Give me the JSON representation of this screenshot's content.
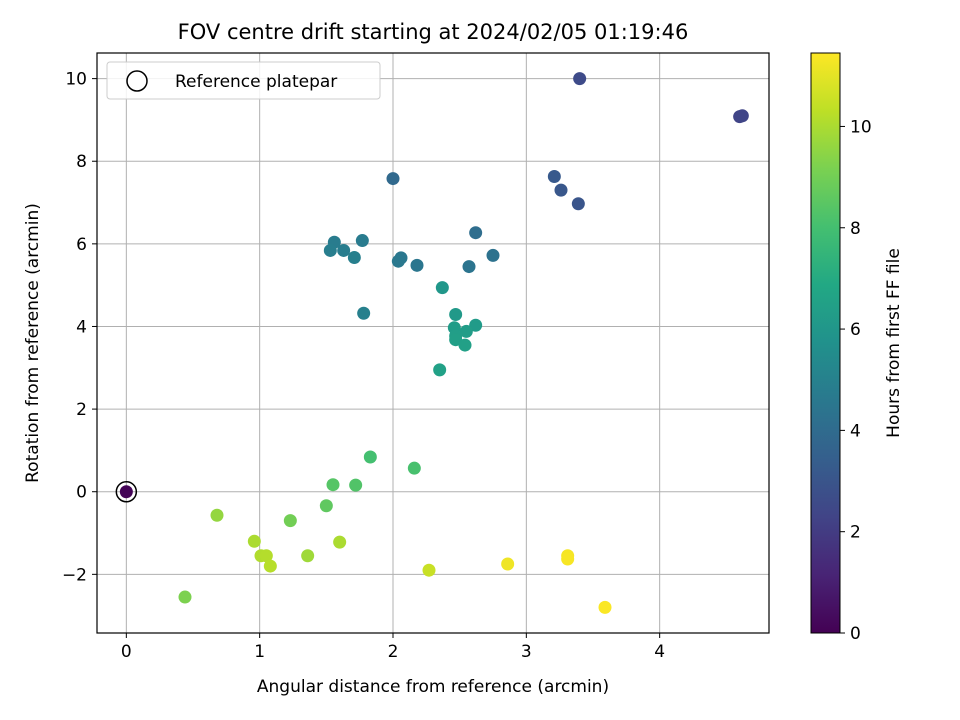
{
  "chart_data": {
    "type": "scatter",
    "title": "FOV centre drift starting at 2024/02/05 01:19:46",
    "xlabel": "Angular distance from reference (arcmin)",
    "ylabel": "Rotation from reference (arcmin)",
    "xlim": [
      -0.22,
      4.82
    ],
    "ylim": [
      -3.42,
      10.62
    ],
    "xticks": [
      0,
      1,
      2,
      3,
      4
    ],
    "xtick_labels": [
      "0",
      "1",
      "2",
      "3",
      "4"
    ],
    "yticks": [
      -2,
      0,
      2,
      4,
      6,
      8,
      10
    ],
    "ytick_labels": [
      "−2",
      "0",
      "2",
      "4",
      "6",
      "8",
      "10"
    ],
    "grid": true,
    "legend": {
      "location": "upper-left",
      "label": "Reference platepar"
    },
    "reference_point": {
      "x": 0,
      "y": 0
    },
    "colorbar": {
      "label": "Hours from first FF file",
      "range": [
        0,
        11.45
      ],
      "ticks": [
        0,
        2,
        4,
        6,
        8,
        10
      ],
      "tick_labels": [
        "0",
        "2",
        "4",
        "6",
        "8",
        "10"
      ],
      "colormap": "viridis"
    },
    "points": [
      {
        "x": 0.0,
        "y": 0.0,
        "hours": 0.1
      },
      {
        "x": 4.6,
        "y": 9.08,
        "hours": 2.3
      },
      {
        "x": 4.62,
        "y": 9.1,
        "hours": 2.35
      },
      {
        "x": 3.4,
        "y": 10.0,
        "hours": 2.6
      },
      {
        "x": 3.39,
        "y": 6.97,
        "hours": 3.0
      },
      {
        "x": 3.26,
        "y": 7.3,
        "hours": 3.1
      },
      {
        "x": 3.21,
        "y": 7.63,
        "hours": 3.2
      },
      {
        "x": 2.0,
        "y": 7.58,
        "hours": 3.9
      },
      {
        "x": 2.62,
        "y": 6.27,
        "hours": 4.1
      },
      {
        "x": 2.75,
        "y": 5.72,
        "hours": 4.3
      },
      {
        "x": 2.57,
        "y": 5.45,
        "hours": 4.4
      },
      {
        "x": 2.18,
        "y": 5.48,
        "hours": 4.5
      },
      {
        "x": 2.06,
        "y": 5.66,
        "hours": 4.55
      },
      {
        "x": 2.04,
        "y": 5.58,
        "hours": 4.6
      },
      {
        "x": 1.77,
        "y": 6.08,
        "hours": 4.7
      },
      {
        "x": 1.56,
        "y": 6.04,
        "hours": 4.75
      },
      {
        "x": 1.63,
        "y": 5.84,
        "hours": 4.8
      },
      {
        "x": 1.53,
        "y": 5.84,
        "hours": 4.85
      },
      {
        "x": 1.71,
        "y": 5.67,
        "hours": 4.9
      },
      {
        "x": 1.78,
        "y": 4.32,
        "hours": 4.95
      },
      {
        "x": 2.37,
        "y": 4.94,
        "hours": 6.0
      },
      {
        "x": 2.47,
        "y": 4.29,
        "hours": 6.1
      },
      {
        "x": 2.62,
        "y": 4.03,
        "hours": 6.2
      },
      {
        "x": 2.46,
        "y": 3.97,
        "hours": 6.25
      },
      {
        "x": 2.55,
        "y": 3.88,
        "hours": 6.3
      },
      {
        "x": 2.47,
        "y": 3.77,
        "hours": 6.35
      },
      {
        "x": 2.47,
        "y": 3.68,
        "hours": 6.4
      },
      {
        "x": 2.54,
        "y": 3.55,
        "hours": 6.45
      },
      {
        "x": 2.35,
        "y": 2.95,
        "hours": 6.5
      },
      {
        "x": 1.83,
        "y": 0.84,
        "hours": 8.0
      },
      {
        "x": 2.16,
        "y": 0.57,
        "hours": 8.1
      },
      {
        "x": 1.55,
        "y": 0.17,
        "hours": 8.4
      },
      {
        "x": 1.72,
        "y": 0.16,
        "hours": 8.3
      },
      {
        "x": 1.5,
        "y": -0.34,
        "hours": 8.6
      },
      {
        "x": 1.23,
        "y": -0.7,
        "hours": 9.0
      },
      {
        "x": 0.68,
        "y": -0.57,
        "hours": 9.6
      },
      {
        "x": 0.44,
        "y": -2.55,
        "hours": 9.2
      },
      {
        "x": 1.36,
        "y": -1.55,
        "hours": 9.8
      },
      {
        "x": 1.6,
        "y": -1.22,
        "hours": 10.0
      },
      {
        "x": 0.96,
        "y": -1.2,
        "hours": 10.0
      },
      {
        "x": 1.01,
        "y": -1.55,
        "hours": 10.1
      },
      {
        "x": 1.05,
        "y": -1.55,
        "hours": 10.15
      },
      {
        "x": 1.08,
        "y": -1.8,
        "hours": 10.2
      },
      {
        "x": 2.27,
        "y": -1.9,
        "hours": 10.5
      },
      {
        "x": 2.86,
        "y": -1.75,
        "hours": 11.2
      },
      {
        "x": 3.31,
        "y": -1.55,
        "hours": 11.3
      },
      {
        "x": 3.31,
        "y": -1.63,
        "hours": 11.35
      },
      {
        "x": 3.59,
        "y": -2.8,
        "hours": 11.4
      }
    ]
  }
}
